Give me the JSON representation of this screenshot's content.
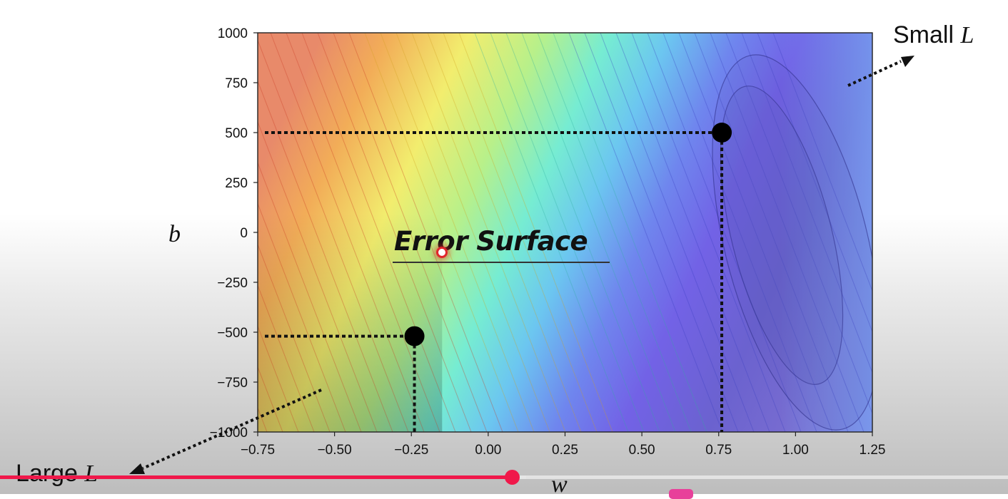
{
  "player": {
    "progress_fraction": 0.508,
    "buffered_fraction": 0.522,
    "progress_color": "#f0184a"
  },
  "slide": {
    "title": "Error Surface",
    "small_label": "Small ",
    "large_label": "Large ",
    "loss_symbol": "L",
    "pointer_color": "#e0252b",
    "contour_colormap": "jet"
  },
  "chart_data": {
    "type": "contour",
    "title": "",
    "xlabel": "w",
    "ylabel": "b",
    "xlim": [
      -0.75,
      1.25
    ],
    "ylim": [
      -1000,
      1000
    ],
    "x_ticks": [
      "−0.75",
      "−0.50",
      "−0.25",
      "0.00",
      "0.25",
      "0.50",
      "0.75",
      "1.00",
      "1.25"
    ],
    "x_tick_values": [
      -0.75,
      -0.5,
      -0.25,
      0,
      0.25,
      0.5,
      0.75,
      1.0,
      1.25
    ],
    "y_ticks": [
      "1000",
      "750",
      "500",
      "250",
      "0",
      "−250",
      "−500",
      "−750",
      "−1000"
    ],
    "y_tick_values": [
      1000,
      750,
      500,
      250,
      0,
      -250,
      -500,
      -750,
      -1000
    ],
    "points": [
      {
        "w": 0.76,
        "b": 500
      },
      {
        "w": -0.24,
        "b": -520
      }
    ],
    "grid": false
  }
}
